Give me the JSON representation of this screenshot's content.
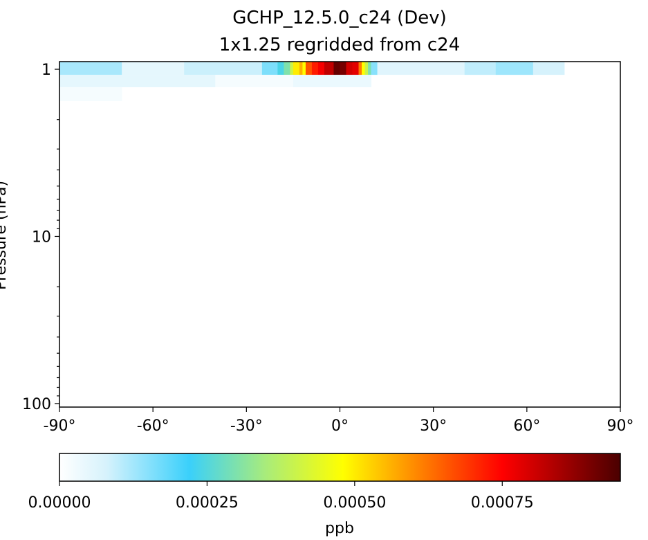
{
  "chart_data": {
    "type": "heatmap",
    "title": "GCHP_12.5.0_c24 (Dev)",
    "subtitle": "1x1.25 regridded from c24",
    "xlabel": "",
    "ylabel": "Pressure (hPa)",
    "x_ticks": [
      -90,
      -60,
      -30,
      0,
      30,
      60,
      90
    ],
    "x_tick_labels": [
      "-90°",
      "-60°",
      "-30°",
      "0°",
      "30°",
      "60°",
      "90°"
    ],
    "xlim": [
      -90,
      90
    ],
    "y_scale": "log",
    "y_inverted": true,
    "ylim": [
      0.9,
      105
    ],
    "y_ticks": [
      1,
      10,
      100
    ],
    "y_tick_labels": [
      "1",
      "10",
      "100"
    ],
    "colormap": "WhGrYlRd",
    "colorbar": {
      "label": "ppb",
      "vmin": 0,
      "vmax": 0.00095,
      "ticks": [
        0,
        0.00025,
        0.0005,
        0.00075
      ],
      "tick_labels": [
        "0.00000",
        "0.00025",
        "0.00050",
        "0.00075"
      ],
      "stops": [
        {
          "value": 0.0,
          "color": "#ffffff"
        },
        {
          "value": 8e-05,
          "color": "#d6f2fc"
        },
        {
          "value": 0.00022,
          "color": "#3ad0fb"
        },
        {
          "value": 0.00035,
          "color": "#a9ec7a"
        },
        {
          "value": 0.00048,
          "color": "#ffff00"
        },
        {
          "value": 0.0006,
          "color": "#ff8c00"
        },
        {
          "value": 0.00075,
          "color": "#ff0000"
        },
        {
          "value": 0.00095,
          "color": "#4a0000"
        }
      ]
    },
    "rows": [
      {
        "p_top": 0.9,
        "p_bottom": 1.08,
        "segments": [
          {
            "lat0": -90,
            "lat1": -70,
            "value": 0.00012
          },
          {
            "lat0": -70,
            "lat1": -50,
            "value": 5e-05
          },
          {
            "lat0": -50,
            "lat1": -25,
            "value": 9e-05
          },
          {
            "lat0": -25,
            "lat1": -20,
            "value": 0.00016
          },
          {
            "lat0": -20,
            "lat1": -18,
            "value": 0.00024
          },
          {
            "lat0": -18,
            "lat1": -16,
            "value": 0.0003
          },
          {
            "lat0": -16,
            "lat1": -15,
            "value": 0.0004
          },
          {
            "lat0": -15,
            "lat1": -13,
            "value": 0.0005
          },
          {
            "lat0": -13,
            "lat1": -12,
            "value": 0.00056
          },
          {
            "lat0": -12,
            "lat1": -11,
            "value": 0.00048
          },
          {
            "lat0": -11,
            "lat1": -9,
            "value": 0.00066
          },
          {
            "lat0": -9,
            "lat1": -7,
            "value": 0.00072
          },
          {
            "lat0": -7,
            "lat1": -5,
            "value": 0.00076
          },
          {
            "lat0": -5,
            "lat1": -2,
            "value": 0.00082
          },
          {
            "lat0": -2,
            "lat1": 0,
            "value": 0.00092
          },
          {
            "lat0": 0,
            "lat1": 2,
            "value": 0.0009
          },
          {
            "lat0": 2,
            "lat1": 4,
            "value": 0.0008
          },
          {
            "lat0": 4,
            "lat1": 6,
            "value": 0.00078
          },
          {
            "lat0": 6,
            "lat1": 7,
            "value": 0.00062
          },
          {
            "lat0": 7,
            "lat1": 8,
            "value": 0.00048
          },
          {
            "lat0": 8,
            "lat1": 9,
            "value": 0.0004
          },
          {
            "lat0": 9,
            "lat1": 10,
            "value": 0.0003
          },
          {
            "lat0": 10,
            "lat1": 12,
            "value": 0.00015
          },
          {
            "lat0": 12,
            "lat1": 40,
            "value": 6e-05
          },
          {
            "lat0": 40,
            "lat1": 50,
            "value": 0.0001
          },
          {
            "lat0": 50,
            "lat1": 62,
            "value": 0.00013
          },
          {
            "lat0": 62,
            "lat1": 72,
            "value": 8e-05
          },
          {
            "lat0": 72,
            "lat1": 90,
            "value": 0.0
          }
        ]
      },
      {
        "p_top": 1.08,
        "p_bottom": 1.28,
        "segments": [
          {
            "lat0": -90,
            "lat1": -40,
            "value": 5e-05
          },
          {
            "lat0": -40,
            "lat1": -15,
            "value": 2e-05
          },
          {
            "lat0": -15,
            "lat1": 10,
            "value": 4e-05
          },
          {
            "lat0": 10,
            "lat1": 90,
            "value": 0.0
          }
        ]
      },
      {
        "p_top": 1.28,
        "p_bottom": 1.55,
        "segments": [
          {
            "lat0": -90,
            "lat1": -70,
            "value": 2e-05
          },
          {
            "lat0": -70,
            "lat1": 90,
            "value": 0.0
          }
        ]
      }
    ]
  }
}
